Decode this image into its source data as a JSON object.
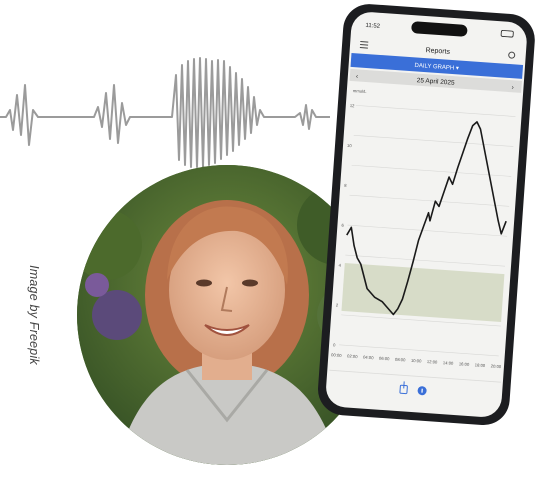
{
  "image_credit": "Image by Freepik",
  "phone": {
    "status_time": "11:52",
    "app_title": "Reports",
    "banner": "DAILY GRAPH ▾",
    "date": "25 April 2025",
    "unit": "mmol/L",
    "y_ticks": [
      "12",
      "10",
      "8",
      "6",
      "4",
      "2",
      "0"
    ],
    "x_ticks": [
      "00:00",
      "02:00",
      "04:00",
      "06:00",
      "08:00",
      "10:00",
      "12:00",
      "14:00",
      "16:00",
      "18:00",
      "20:00"
    ]
  },
  "colors": {
    "phone_body": "#1c1d20",
    "screen_bg": "#f3f3f1",
    "banner": "#3a6fd8",
    "target_band": "#d7dcc8",
    "glucose_line": "#1a1a1a",
    "heartbeat_line": "#9a9a9a"
  },
  "icons": [
    "heartbeat-wave",
    "menu-icon",
    "settings-icon",
    "share-icon",
    "info-icon"
  ]
}
